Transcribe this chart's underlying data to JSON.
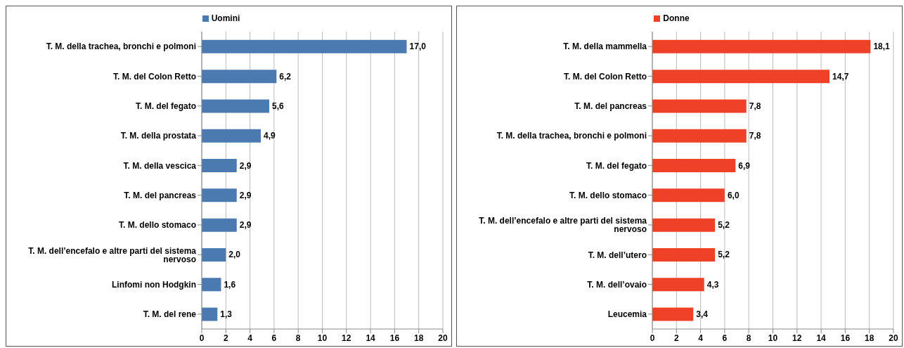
{
  "chart_data": [
    {
      "type": "bar",
      "orientation": "horizontal",
      "categories": [
        "T. M. della trachea, bronchi e polmoni",
        "T. M. del Colon Retto",
        "T. M. del fegato",
        "T. M. della prostata",
        "T. M. della vescica",
        "T. M. del pancreas",
        "T. M. dello stomaco",
        "T. M. dell’encefalo e altre parti del sistema nervoso",
        "Linfomi non Hodgkin",
        "T. M. del rene"
      ],
      "series": [
        {
          "name": "Uomini",
          "color": "#4a7ab0",
          "values": [
            17.0,
            6.2,
            5.6,
            4.9,
            2.9,
            2.9,
            2.9,
            2.0,
            1.6,
            1.3
          ],
          "value_labels": [
            "17,0",
            "6,2",
            "5,6",
            "4,9",
            "2,9",
            "2,9",
            "2,9",
            "2,0",
            "1,6",
            "1,3"
          ]
        }
      ],
      "xlim": [
        0,
        20
      ],
      "xticks": [
        0,
        2,
        4,
        6,
        8,
        10,
        12,
        14,
        16,
        18,
        20
      ],
      "grid": "x",
      "legend": "top"
    },
    {
      "type": "bar",
      "orientation": "horizontal",
      "categories": [
        "T. M. della mammella",
        "T. M. del Colon Retto",
        "T. M. del pancreas",
        "T. M. della trachea, bronchi e polmoni",
        "T. M. del fegato",
        "T. M. dello stomaco",
        "T. M. dell’encefalo e altre parti del sistema nervoso",
        "T. M. dell’utero",
        "T. M. dell’ovaio",
        "Leucemia"
      ],
      "series": [
        {
          "name": "Donne",
          "color": "#ee4128",
          "values": [
            18.1,
            14.7,
            7.8,
            7.8,
            6.9,
            6.0,
            5.2,
            5.2,
            4.3,
            3.4
          ],
          "value_labels": [
            "18,1",
            "14,7",
            "7,8",
            "7,8",
            "6,9",
            "6,0",
            "5,2",
            "5,2",
            "4,3",
            "3,4"
          ]
        }
      ],
      "xlim": [
        0,
        20
      ],
      "xticks": [
        0,
        2,
        4,
        6,
        8,
        10,
        12,
        14,
        16,
        18,
        20
      ],
      "grid": "x",
      "legend": "top"
    }
  ]
}
